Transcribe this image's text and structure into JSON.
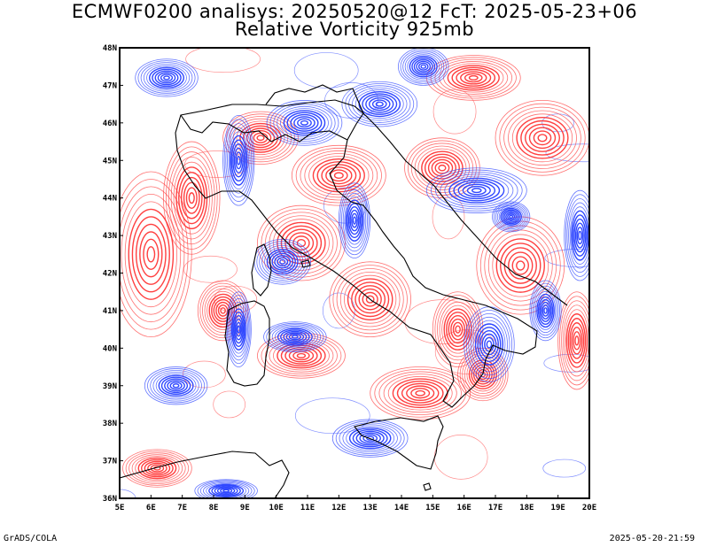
{
  "title_line1": "ECMWF0200 analisys: 20250520@12 FcT: 2025-05-23+06",
  "title_line2": "Relative Vorticity 925mb",
  "footer_left": "GrADS/COLA",
  "footer_right": "2025-05-20-21:59",
  "map": {
    "lon_range": [
      5,
      20
    ],
    "lat_range": [
      36,
      48
    ],
    "lon_ticks": [
      "5E",
      "6E",
      "7E",
      "8E",
      "9E",
      "10E",
      "11E",
      "12E",
      "13E",
      "14E",
      "15E",
      "16E",
      "17E",
      "18E",
      "19E",
      "20E"
    ],
    "lat_ticks": [
      "36N",
      "37N",
      "38N",
      "39N",
      "40N",
      "41N",
      "42N",
      "43N",
      "44N",
      "45N",
      "46N",
      "47N",
      "48N"
    ],
    "colors": {
      "positive": "#ff4040",
      "negative": "#3048ff",
      "coast": "#000000",
      "frame": "#000000"
    },
    "positive_centers": [
      [
        6.0,
        42.5,
        1.3,
        2.2
      ],
      [
        7.3,
        44.0,
        0.9,
        1.5
      ],
      [
        9.5,
        45.6,
        1.2,
        0.7
      ],
      [
        12.0,
        44.6,
        1.5,
        0.8
      ],
      [
        15.3,
        44.8,
        1.2,
        0.8
      ],
      [
        18.5,
        45.6,
        1.5,
        1.0
      ],
      [
        10.8,
        42.8,
        1.4,
        1.0
      ],
      [
        13.0,
        41.3,
        1.3,
        1.0
      ],
      [
        17.8,
        42.2,
        1.4,
        1.3
      ],
      [
        10.8,
        39.8,
        1.4,
        0.6
      ],
      [
        15.8,
        40.5,
        0.8,
        1.0
      ],
      [
        16.6,
        39.3,
        0.8,
        0.7
      ],
      [
        6.2,
        36.8,
        1.1,
        0.5
      ],
      [
        19.6,
        40.2,
        0.6,
        1.3
      ],
      [
        16.3,
        47.2,
        1.5,
        0.6
      ],
      [
        8.3,
        41.0,
        0.8,
        0.8
      ],
      [
        14.6,
        38.8,
        1.6,
        0.7
      ]
    ],
    "negative_centers": [
      [
        8.8,
        45.0,
        0.5,
        1.2
      ],
      [
        10.9,
        46.0,
        1.2,
        0.6
      ],
      [
        13.3,
        46.5,
        1.2,
        0.6
      ],
      [
        14.7,
        47.5,
        0.8,
        0.5
      ],
      [
        16.4,
        44.2,
        1.6,
        0.6
      ],
      [
        12.5,
        43.4,
        0.5,
        1.0
      ],
      [
        10.2,
        42.3,
        0.9,
        0.6
      ],
      [
        8.8,
        40.5,
        0.4,
        1.0
      ],
      [
        10.6,
        40.3,
        1.0,
        0.4
      ],
      [
        16.8,
        40.1,
        0.8,
        1.0
      ],
      [
        18.6,
        41.0,
        0.5,
        0.8
      ],
      [
        19.7,
        43.0,
        0.5,
        1.2
      ],
      [
        13.0,
        37.6,
        1.2,
        0.5
      ],
      [
        8.4,
        36.2,
        1.0,
        0.3
      ],
      [
        6.8,
        39.0,
        1.0,
        0.5
      ],
      [
        17.5,
        43.5,
        0.6,
        0.4
      ],
      [
        6.5,
        47.2,
        1.0,
        0.5
      ]
    ]
  }
}
